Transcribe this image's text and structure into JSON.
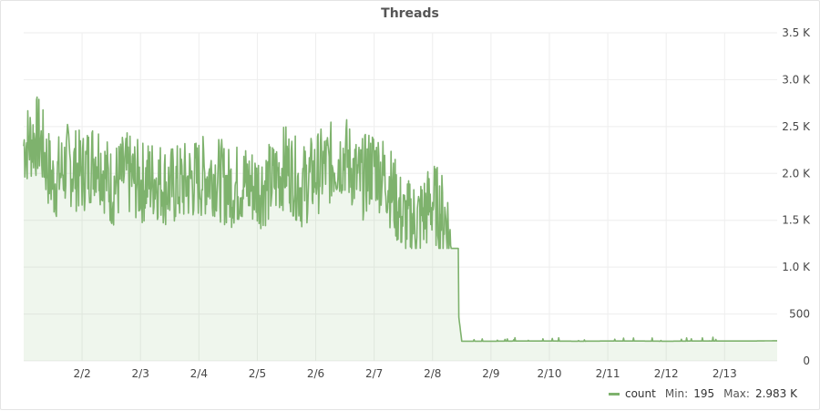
{
  "panel": {
    "title": "Threads"
  },
  "legend": {
    "series_name": "count",
    "min_label": "Min:",
    "min_value": "195",
    "max_label": "Max:",
    "max_value": "2.983 K"
  },
  "colors": {
    "line": "#7eb26d",
    "fill": "#7eb26d",
    "grid": "#eeeeee"
  },
  "chart_data": {
    "type": "area",
    "title": "Threads",
    "xlabel": "",
    "ylabel": "",
    "ylim": [
      0,
      3500
    ],
    "y_ticks": [
      {
        "value": 0,
        "label": "0"
      },
      {
        "value": 500,
        "label": "500"
      },
      {
        "value": 1000,
        "label": "1.0 K"
      },
      {
        "value": 1500,
        "label": "1.5 K"
      },
      {
        "value": 2000,
        "label": "2.0 K"
      },
      {
        "value": 2500,
        "label": "2.5 K"
      },
      {
        "value": 3000,
        "label": "3.0 K"
      },
      {
        "value": 3500,
        "label": "3.5 K"
      }
    ],
    "x_range": [
      "2/1",
      "2/13 end"
    ],
    "x_ticks": [
      "2/2",
      "2/3",
      "2/4",
      "2/5",
      "2/6",
      "2/7",
      "2/8",
      "2/9",
      "2/10",
      "2/11",
      "2/12",
      "2/13"
    ],
    "grid": true,
    "legend_position": "bottom-right",
    "series": [
      {
        "name": "count",
        "x_days": [
          0.0,
          0.25,
          0.5,
          0.75,
          1.0,
          1.25,
          1.5,
          1.75,
          2.0,
          2.25,
          2.5,
          2.75,
          3.0,
          3.25,
          3.5,
          3.75,
          4.0,
          4.25,
          4.5,
          4.75,
          5.0,
          5.25,
          5.5,
          5.75,
          6.0,
          6.25,
          6.5,
          6.75,
          7.0,
          7.25,
          7.5,
          8.0,
          8.5,
          9.0,
          9.5,
          10.0,
          10.5,
          11.0,
          11.5,
          12.0,
          12.5,
          12.9
        ],
        "values": [
          2300,
          2400,
          1900,
          2100,
          2000,
          2200,
          1850,
          2000,
          1900,
          1950,
          1850,
          1900,
          1950,
          2000,
          1850,
          1900,
          1850,
          1900,
          2100,
          1850,
          2000,
          2100,
          2200,
          1900,
          2100,
          1900,
          1500,
          1500,
          1700,
          1500,
          210,
          210,
          212,
          212,
          210,
          212,
          212,
          210,
          212,
          212,
          212,
          215
        ],
        "min": 195,
        "max": 2983
      }
    ]
  }
}
